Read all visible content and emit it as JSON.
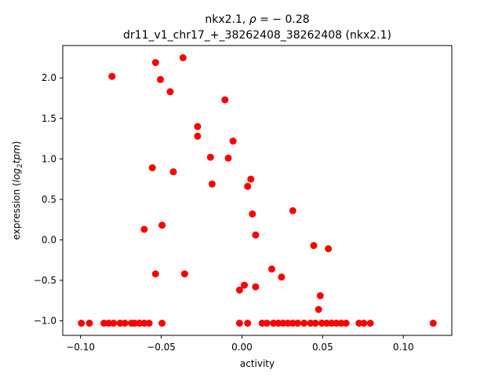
{
  "chart_data": {
    "type": "scatter",
    "title_line1_prefix": "nkx2.1, ",
    "title_line1_rho": "ρ",
    "title_line1_suffix": " = − 0.28",
    "title_line2": "dr11_v1_chr17_+_38262408_38262408 (nkx2.1)",
    "xlabel": "activity",
    "ylabel_prefix": "expression (",
    "ylabel_math_log": "log",
    "ylabel_math_sub": "2",
    "ylabel_math_tpm": "tpm",
    "ylabel_suffix": ")",
    "xlim": [
      -0.111,
      0.13
    ],
    "ylim": [
      -1.18,
      2.4
    ],
    "xticks": [
      {
        "value": -0.1,
        "label": "−0.10"
      },
      {
        "value": -0.05,
        "label": "−0.05"
      },
      {
        "value": 0.0,
        "label": "0.00"
      },
      {
        "value": 0.05,
        "label": "0.05"
      },
      {
        "value": 0.1,
        "label": "0.10"
      }
    ],
    "yticks": [
      {
        "value": -1.0,
        "label": "−1.0"
      },
      {
        "value": -0.5,
        "label": "−0.5"
      },
      {
        "value": 0.0,
        "label": "0.0"
      },
      {
        "value": 0.5,
        "label": "0.5"
      },
      {
        "value": 1.0,
        "label": "1.0"
      },
      {
        "value": 1.5,
        "label": "1.5"
      },
      {
        "value": 2.0,
        "label": "2.0"
      }
    ],
    "grid": false,
    "marker_color": "#ff0000",
    "points": [
      {
        "x": -0.0805,
        "y": 2.02
      },
      {
        "x": -0.0535,
        "y": 2.19
      },
      {
        "x": -0.0365,
        "y": 2.25
      },
      {
        "x": -0.0505,
        "y": 1.98
      },
      {
        "x": -0.0445,
        "y": 1.83
      },
      {
        "x": -0.0105,
        "y": 1.73
      },
      {
        "x": -0.0275,
        "y": 1.4
      },
      {
        "x": -0.0275,
        "y": 1.28
      },
      {
        "x": -0.0055,
        "y": 1.22
      },
      {
        "x": -0.0195,
        "y": 1.02
      },
      {
        "x": -0.0085,
        "y": 1.01
      },
      {
        "x": -0.0555,
        "y": 0.89
      },
      {
        "x": -0.0425,
        "y": 0.84
      },
      {
        "x": 0.0055,
        "y": 0.75
      },
      {
        "x": -0.0185,
        "y": 0.69
      },
      {
        "x": 0.0035,
        "y": 0.66
      },
      {
        "x": 0.0315,
        "y": 0.36
      },
      {
        "x": 0.0065,
        "y": 0.32
      },
      {
        "x": -0.0495,
        "y": 0.18
      },
      {
        "x": -0.0605,
        "y": 0.13
      },
      {
        "x": 0.0085,
        "y": 0.06
      },
      {
        "x": 0.0445,
        "y": -0.07
      },
      {
        "x": 0.0535,
        "y": -0.11
      },
      {
        "x": 0.0185,
        "y": -0.36
      },
      {
        "x": -0.0535,
        "y": -0.42
      },
      {
        "x": -0.0355,
        "y": -0.42
      },
      {
        "x": 0.0245,
        "y": -0.46
      },
      {
        "x": 0.0015,
        "y": -0.56
      },
      {
        "x": 0.0085,
        "y": -0.58
      },
      {
        "x": -0.0015,
        "y": -0.62
      },
      {
        "x": 0.0485,
        "y": -0.69
      },
      {
        "x": 0.0475,
        "y": -0.86
      },
      {
        "x": -0.0995,
        "y": -1.03
      },
      {
        "x": -0.0945,
        "y": -1.03
      },
      {
        "x": -0.0855,
        "y": -1.03
      },
      {
        "x": -0.0825,
        "y": -1.03
      },
      {
        "x": -0.0795,
        "y": -1.03
      },
      {
        "x": -0.0755,
        "y": -1.03
      },
      {
        "x": -0.0725,
        "y": -1.03
      },
      {
        "x": -0.0685,
        "y": -1.03
      },
      {
        "x": -0.0665,
        "y": -1.03
      },
      {
        "x": -0.0635,
        "y": -1.03
      },
      {
        "x": -0.0605,
        "y": -1.03
      },
      {
        "x": -0.0575,
        "y": -1.03
      },
      {
        "x": -0.0495,
        "y": -1.03
      },
      {
        "x": -0.0015,
        "y": -1.03
      },
      {
        "x": 0.0035,
        "y": -1.03
      },
      {
        "x": 0.0125,
        "y": -1.03
      },
      {
        "x": 0.0155,
        "y": -1.03
      },
      {
        "x": 0.0195,
        "y": -1.03
      },
      {
        "x": 0.0225,
        "y": -1.03
      },
      {
        "x": 0.0255,
        "y": -1.03
      },
      {
        "x": 0.0285,
        "y": -1.03
      },
      {
        "x": 0.0315,
        "y": -1.03
      },
      {
        "x": 0.0345,
        "y": -1.03
      },
      {
        "x": 0.0385,
        "y": -1.03
      },
      {
        "x": 0.0425,
        "y": -1.03
      },
      {
        "x": 0.0455,
        "y": -1.03
      },
      {
        "x": 0.0495,
        "y": -1.03
      },
      {
        "x": 0.0525,
        "y": -1.03
      },
      {
        "x": 0.0555,
        "y": -1.03
      },
      {
        "x": 0.0585,
        "y": -1.03
      },
      {
        "x": 0.0615,
        "y": -1.03
      },
      {
        "x": 0.0645,
        "y": -1.03
      },
      {
        "x": 0.0725,
        "y": -1.03
      },
      {
        "x": 0.0755,
        "y": -1.03
      },
      {
        "x": 0.0795,
        "y": -1.03
      },
      {
        "x": 0.1185,
        "y": -1.03
      }
    ]
  }
}
